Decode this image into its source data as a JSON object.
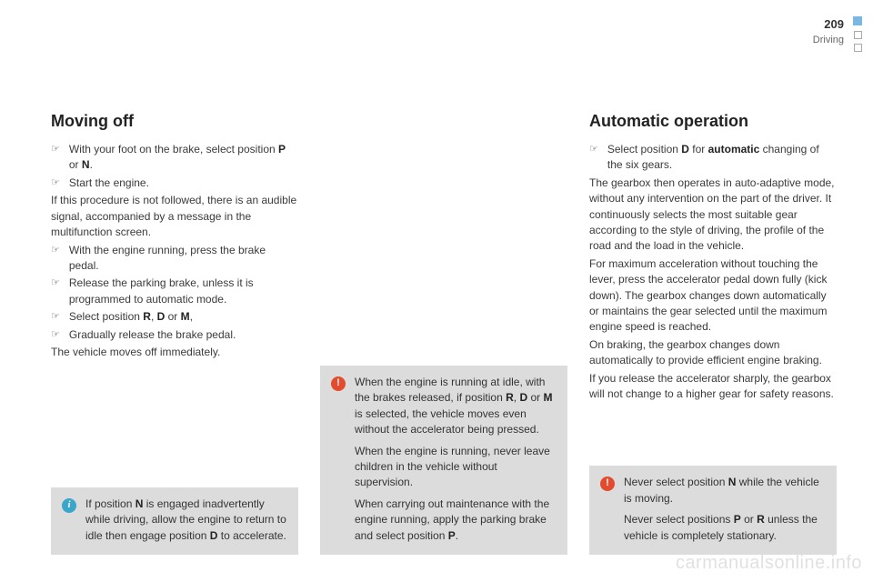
{
  "header": {
    "page_num": "209",
    "section": "Driving"
  },
  "col1": {
    "heading": "Moving off",
    "items": [
      {
        "type": "bullet",
        "text_html": "With your foot on the brake, select position <b>P</b> or <b>N</b>."
      },
      {
        "type": "bullet",
        "text_html": "Start the engine."
      },
      {
        "type": "para",
        "text_html": "If this procedure is not followed, there is an audible signal, accompanied by a message in the multifunction screen."
      },
      {
        "type": "bullet",
        "text_html": "With the engine running, press the brake pedal."
      },
      {
        "type": "bullet",
        "text_html": "Release the parking brake, unless it is programmed to automatic mode."
      },
      {
        "type": "bullet",
        "text_html": "Select position <b>R</b>, <b>D</b> or <b>M</b>,"
      },
      {
        "type": "bullet",
        "text_html": "Gradually release the brake pedal."
      },
      {
        "type": "para",
        "text_html": "The vehicle moves off immediately."
      }
    ],
    "note": {
      "kind": "info",
      "paras": [
        "If position <b>N</b> is engaged inadvertently while driving, allow the engine to return to idle then engage position <b>D</b> to accelerate."
      ]
    }
  },
  "col2": {
    "note": {
      "kind": "warn",
      "paras": [
        "When the engine is running at idle, with the brakes released, if position <b>R</b>, <b>D</b> or <b>M</b> is selected, the vehicle moves even without the accelerator being pressed.",
        "When the engine is running, never leave children in the vehicle without supervision.",
        "When carrying out maintenance with the engine running, apply the parking brake and select position <b>P</b>."
      ]
    }
  },
  "col3": {
    "heading": "Automatic operation",
    "items": [
      {
        "type": "bullet",
        "text_html": "Select position <b>D</b> for <b>automatic</b> changing of the six gears."
      },
      {
        "type": "para",
        "text_html": "The gearbox then operates in auto-adaptive mode, without any intervention on the part of the driver. It continuously selects the most suitable gear according to the style of driving, the profile of the road and the load in the vehicle."
      },
      {
        "type": "para",
        "text_html": "For maximum acceleration without touching the lever, press the accelerator pedal down fully (kick down). The gearbox changes down automatically or maintains the gear selected until the maximum engine speed is reached."
      },
      {
        "type": "para",
        "text_html": "On braking, the gearbox changes down automatically to provide efficient engine braking."
      },
      {
        "type": "para",
        "text_html": "If you release the accelerator sharply, the gearbox will not change to a higher gear for safety reasons."
      }
    ],
    "note": {
      "kind": "warn",
      "paras": [
        "Never select position <b>N</b> while the vehicle is moving.",
        "Never select positions <b>P</b> or <b>R</b> unless the vehicle is completely stationary."
      ]
    }
  },
  "watermark": "carmanualsonline.info",
  "bullet_symbol": "☞",
  "colors": {
    "accent_blue": "#7bb7e0",
    "box_bg": "#dcdcdc",
    "info_icon": "#3aa6c9",
    "warn_icon": "#e34b2e"
  }
}
